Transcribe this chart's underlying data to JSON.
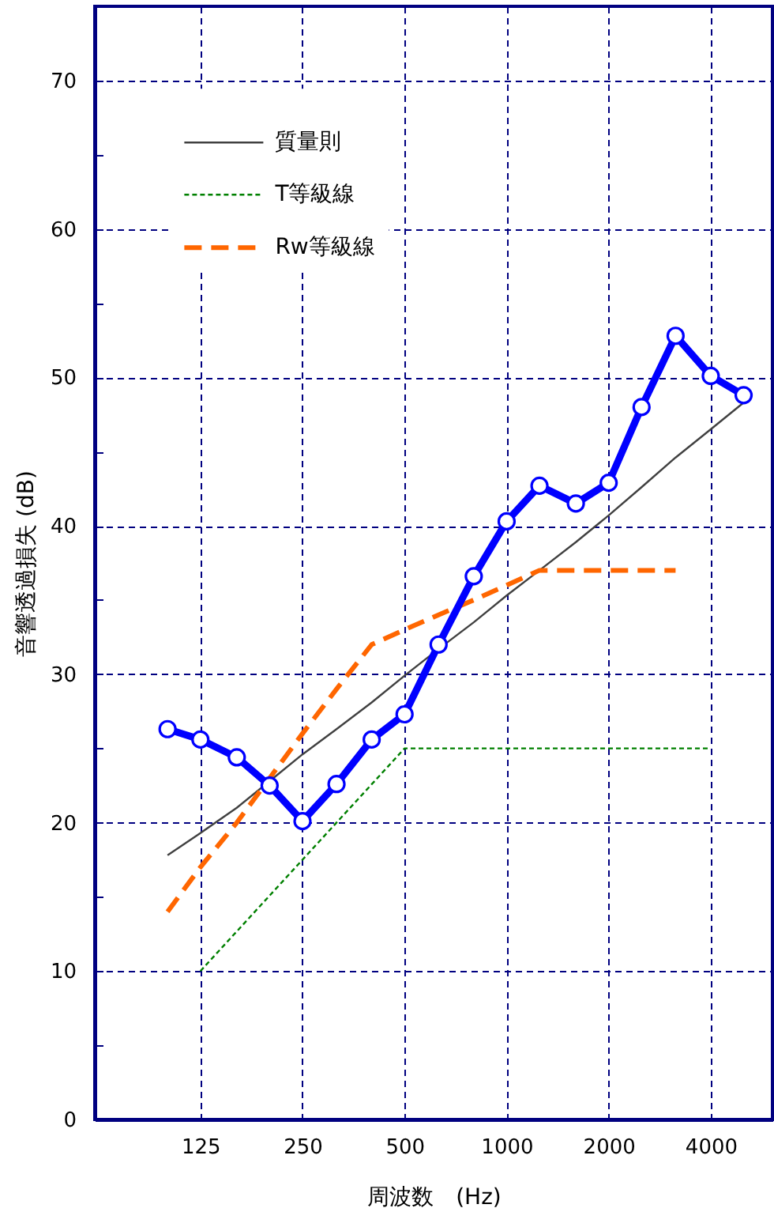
{
  "chart_data": {
    "type": "line",
    "xlabel": "周波数　(Hz)",
    "ylabel": "音響透過損失 (dB)",
    "log": "x",
    "xlim": [
      61,
      6080
    ],
    "xticks": [
      125,
      250,
      500,
      1000,
      2000,
      4000
    ],
    "ylim": [
      0,
      75
    ],
    "yticks": [
      0,
      {
        "value": 5,
        "label": null
      },
      10,
      {
        "value": 15,
        "label": null
      },
      20,
      {
        "value": 25,
        "label": null
      },
      30,
      {
        "value": 35,
        "label": null
      },
      40,
      {
        "value": 45,
        "label": null
      },
      50,
      {
        "value": 55,
        "label": null
      },
      60,
      {
        "value": 65,
        "label": null
      },
      70
    ],
    "grid": true,
    "legend": "top left",
    "x": [
      100,
      125,
      160,
      200,
      250,
      315,
      400,
      500,
      630,
      800,
      1000,
      1250,
      1600,
      2000,
      2500,
      3150,
      4000,
      5000
    ],
    "series": [
      {
        "name": "質量則",
        "color": "#404040",
        "line_style": "solid",
        "marker": "none",
        "values": [
          17.8,
          19.3,
          21.0,
          22.8,
          24.6,
          26.3,
          28.1,
          29.9,
          31.7,
          33.5,
          35.3,
          37.0,
          38.9,
          40.7,
          42.6,
          44.6,
          46.5,
          48.3
        ]
      },
      {
        "name": "T等級線",
        "color": "#008000",
        "line_style": "dotted",
        "marker": "none",
        "x": [
          125,
          500,
          4000
        ],
        "values": [
          10,
          25,
          25
        ]
      },
      {
        "name": "Rw等級線",
        "color": "#ff6600",
        "line_style": "dashed",
        "marker": "none",
        "x": [
          100,
          125,
          160,
          200,
          250,
          315,
          400,
          500,
          630,
          800,
          1000,
          1250,
          1600,
          2000,
          2500,
          3150
        ],
        "values": [
          14,
          17,
          20,
          23,
          26,
          29,
          32,
          33,
          34,
          35,
          36,
          37,
          37,
          37,
          37,
          37
        ]
      },
      {
        "color": "#0000ff",
        "line_style": "solid",
        "marker": "circle",
        "values": [
          26.3,
          25.6,
          24.4,
          22.5,
          20.1,
          22.6,
          25.6,
          27.3,
          32.0,
          36.6,
          40.3,
          42.7,
          41.5,
          42.9,
          48.0,
          52.8,
          50.1,
          48.8
        ]
      }
    ]
  }
}
